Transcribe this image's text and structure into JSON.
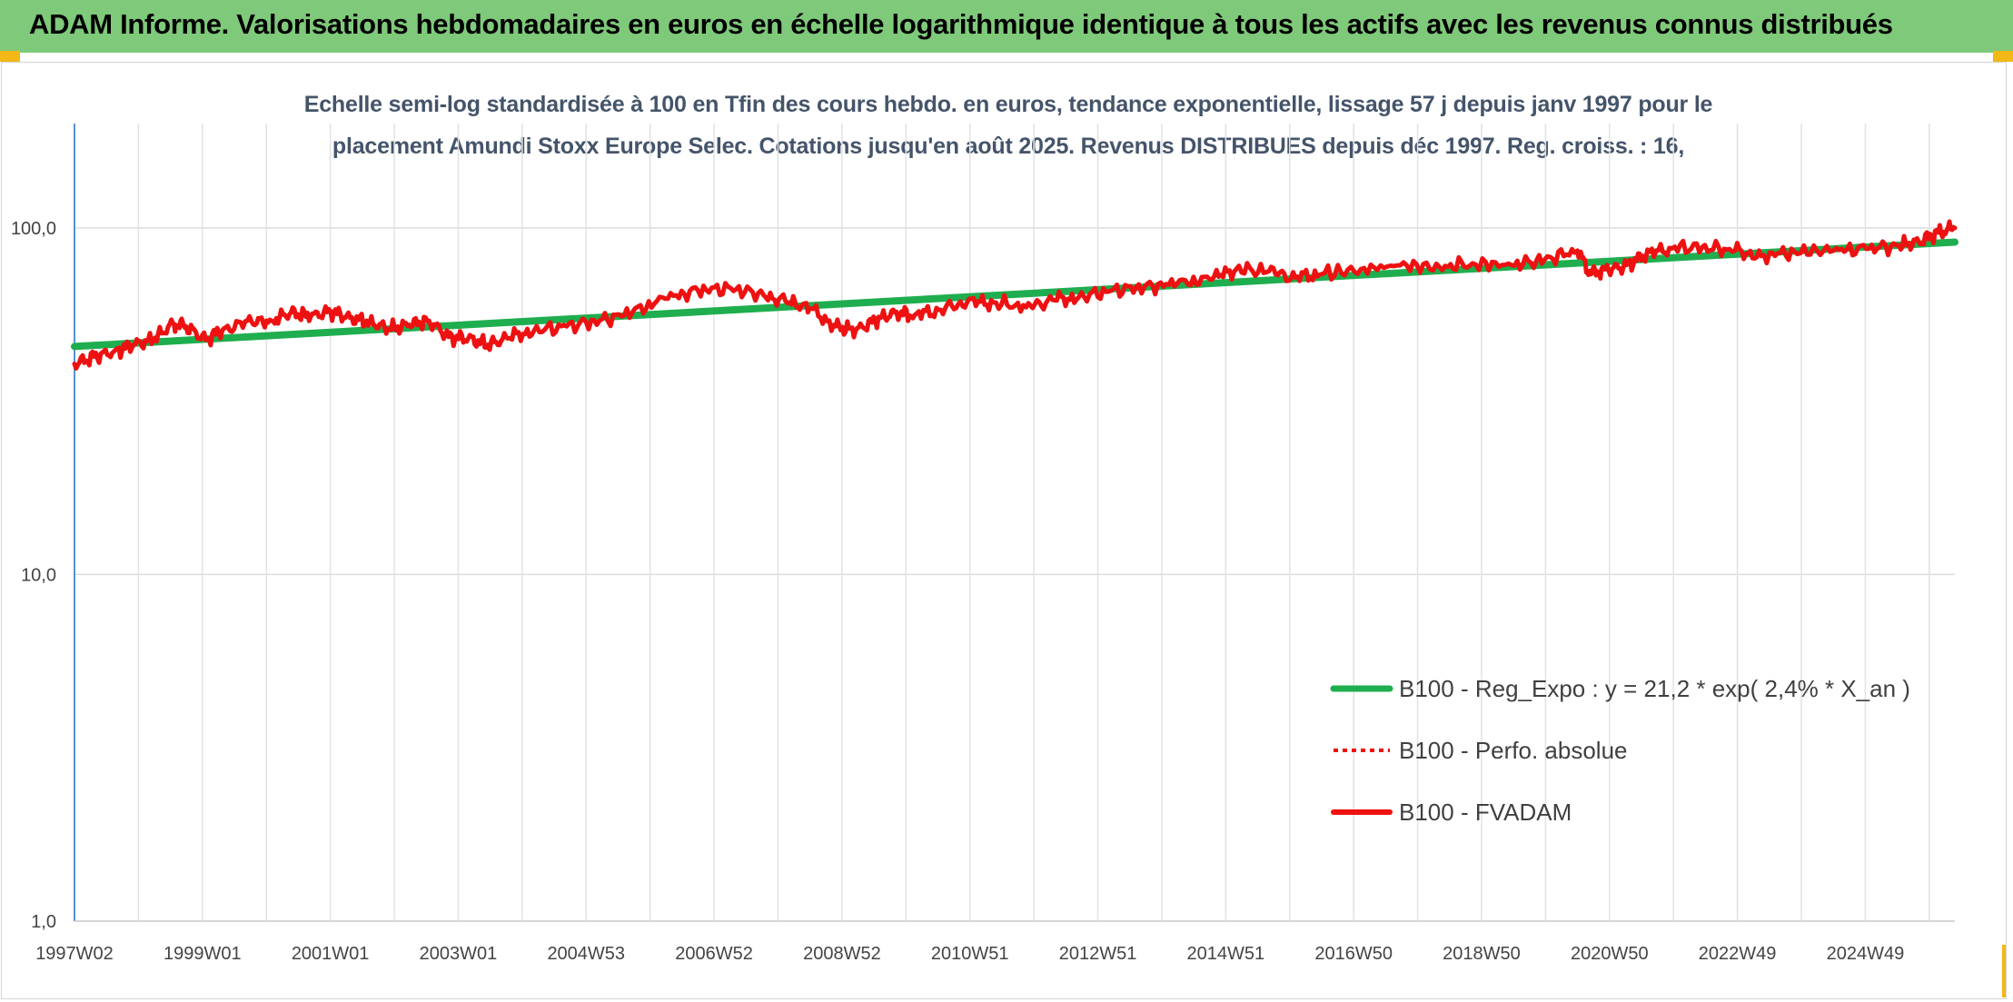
{
  "banner": {
    "title": "ADAM Informe. Valorisations hebdomadaires en euros en échelle logarithmique identique à tous les actifs avec les revenus connus distribués"
  },
  "chart_data": {
    "type": "line",
    "title_line1": "Echelle semi-log standardisée à 100 en Tfin des cours hebdo. en euros, tendance exponentielle, lissage 57 j depuis janv 1997 pour le",
    "title_line2": "placement Amundi Stoxx Europe Selec. Cotations jusqu'en août 2025. Revenus DISTRIBUES depuis déc 1997. Reg. croiss. : 16,",
    "y_scale": "log",
    "ylim": [
      1,
      200
    ],
    "y_ticks": [
      {
        "value": 100,
        "label": "100,0"
      },
      {
        "value": 10,
        "label": "10,0"
      },
      {
        "value": 1,
        "label": "1,0"
      }
    ],
    "x_tick_labels": [
      "1997W02",
      "1999W01",
      "2001W01",
      "2003W01",
      "2004W53",
      "2006W52",
      "2008W52",
      "2010W51",
      "2012W51",
      "2014W51",
      "2016W50",
      "2018W50",
      "2020W50",
      "2022W49",
      "2024W49"
    ],
    "xlim": [
      1997.0,
      2025.65
    ],
    "grid": true,
    "legend_position": "bottom-right",
    "colors": {
      "regression": "#1fae4f",
      "absolute": "#ee1111",
      "fvadam": "#ee1111"
    },
    "series": [
      {
        "name": "B100 - Reg_Expo : y = 21,2 * exp( 2,4% *  X_an )",
        "style": "solid-thick",
        "x": [
          1997.0,
          2025.65
        ],
        "y": [
          45.5,
          91.0
        ]
      },
      {
        "name": "B100 - Perfo. absolue",
        "style": "dotted",
        "x": [],
        "y": []
      },
      {
        "name": "B100 - FVADAM",
        "style": "solid",
        "x": [
          1997.0,
          1997.3,
          1997.6,
          1997.9,
          1998.2,
          1998.5,
          1998.7,
          1999.0,
          1999.3,
          1999.7,
          2000.0,
          2000.3,
          2000.6,
          2000.9,
          2001.2,
          2001.5,
          2001.8,
          2002.1,
          2002.4,
          2002.7,
          2003.0,
          2003.3,
          2003.6,
          2004.0,
          2004.5,
          2005.0,
          2005.5,
          2006.0,
          2006.5,
          2007.0,
          2007.5,
          2007.9,
          2008.2,
          2008.6,
          2008.9,
          2009.2,
          2009.5,
          2009.8,
          2010.2,
          2010.6,
          2011.0,
          2011.5,
          2011.9,
          2012.3,
          2012.8,
          2013.3,
          2013.8,
          2014.3,
          2014.7,
          2015.2,
          2015.6,
          2016.0,
          2016.6,
          2017.2,
          2017.8,
          2018.3,
          2018.9,
          2019.4,
          2019.9,
          2020.1,
          2020.3,
          2020.6,
          2020.9,
          2021.3,
          2021.8,
          2022.3,
          2022.7,
          2023.2,
          2023.8,
          2024.3,
          2024.8,
          2025.1,
          2025.4,
          2025.65
        ],
        "y": [
          40.5,
          42.5,
          44.0,
          46.0,
          47.5,
          53.0,
          52.0,
          47.5,
          51.5,
          53.5,
          54.0,
          57.0,
          55.5,
          57.5,
          55.0,
          53.5,
          51.0,
          52.5,
          54.0,
          48.5,
          48.0,
          46.0,
          48.0,
          50.5,
          52.0,
          54.0,
          57.0,
          62.5,
          66.0,
          67.0,
          64.0,
          61.0,
          58.5,
          52.0,
          50.5,
          54.0,
          57.0,
          56.0,
          58.0,
          61.0,
          61.0,
          59.0,
          62.0,
          63.0,
          66.0,
          67.5,
          69.0,
          71.0,
          76.0,
          75.0,
          72.0,
          73.5,
          76.0,
          78.0,
          77.0,
          79.0,
          78.0,
          81.0,
          86.0,
          73.5,
          76.0,
          77.0,
          83.0,
          87.5,
          88.0,
          86.0,
          83.0,
          85.5,
          86.0,
          87.0,
          89.0,
          91.0,
          97.0,
          100.0
        ]
      }
    ]
  }
}
